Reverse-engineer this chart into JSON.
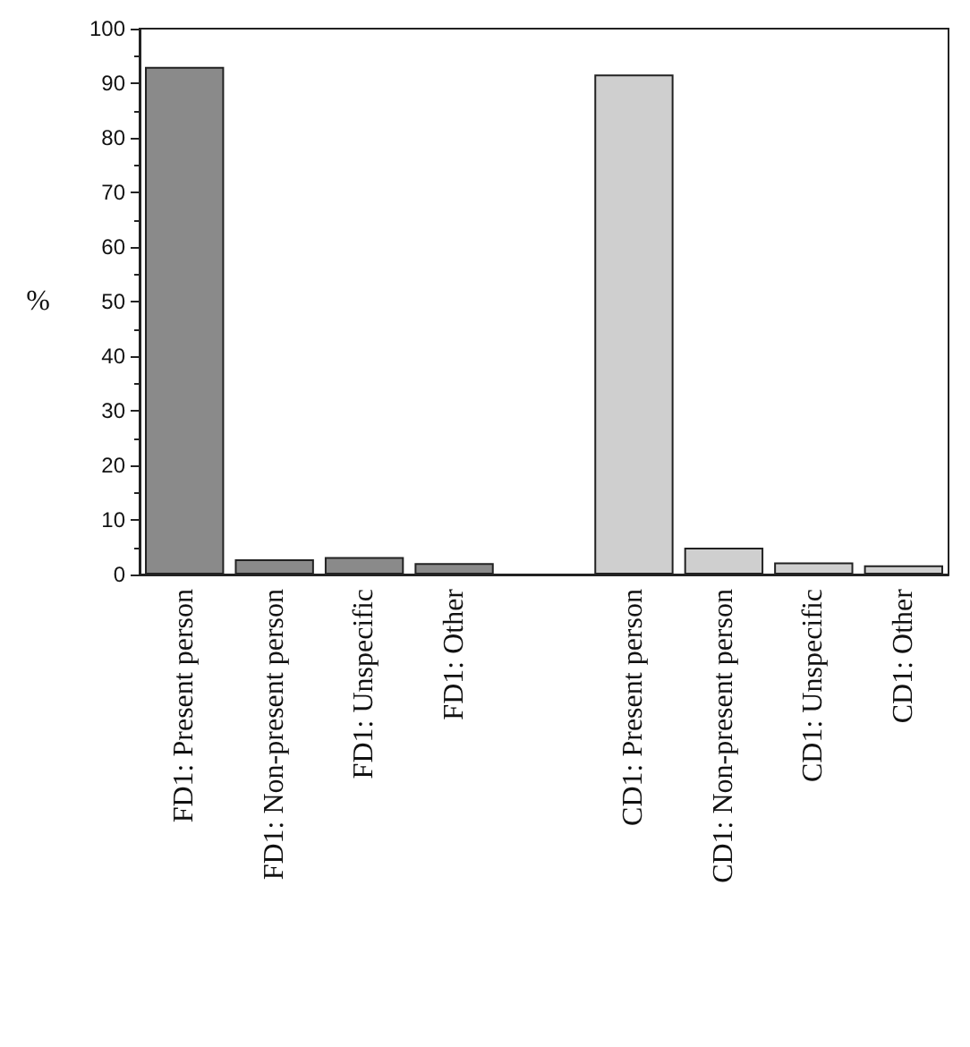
{
  "chart_data": {
    "type": "bar",
    "ylabel": "%",
    "categories": [
      "FD1: Present person",
      "FD1: Non-present person",
      "FD1: Unspecific",
      "FD1: Other",
      null,
      "CD1: Present person",
      "CD1: Non-present person",
      "CD1: Unspecific",
      "CD1: Other"
    ],
    "series": [
      {
        "color": "#8a8a8a",
        "values": [
          93,
          2.8,
          3.2,
          2.1,
          null,
          null,
          null,
          null,
          null
        ]
      },
      {
        "color": "#cfcfcf",
        "values": [
          null,
          null,
          null,
          null,
          null,
          91.6,
          4.9,
          2.2,
          1.7
        ]
      }
    ],
    "stacked": true,
    "ylim": [
      0,
      100
    ],
    "yticks": [
      0,
      10,
      20,
      30,
      40,
      50,
      60,
      70,
      80,
      90,
      100
    ],
    "grid": false
  }
}
